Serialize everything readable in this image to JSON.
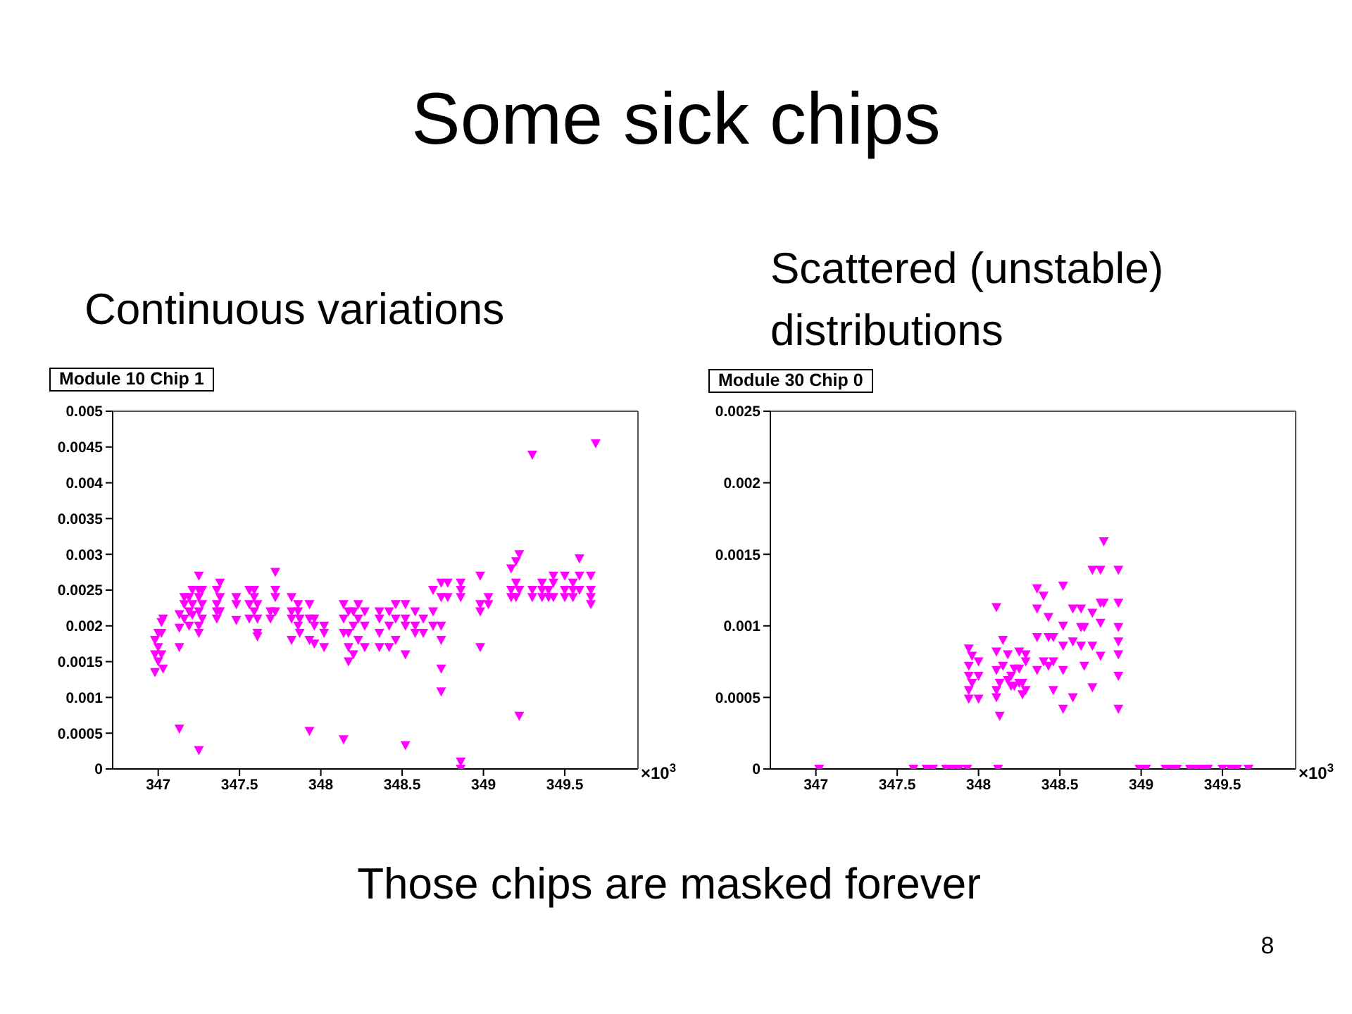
{
  "chart_data": [
    {
      "type": "other",
      "title": "Some sick chips",
      "annotations": [
        "Those chips are masked forever",
        "8"
      ]
    },
    {
      "type": "scatter",
      "title": "Module 10 Chip 1",
      "subtitle": "Continuous variations",
      "xlabel": "×10$^{3}$",
      "color": "#ff00ff",
      "marker": "triangle",
      "xlim": [
        346.72,
        349.95
      ],
      "xticks": [
        347,
        347.5,
        348,
        348.5,
        349,
        349.5
      ],
      "ylim": [
        0,
        0.005
      ],
      "yticks": [
        0,
        0.0005,
        0.001,
        0.0015,
        0.002,
        0.0025,
        0.003,
        0.0035,
        0.004,
        0.0045,
        0.005
      ],
      "x": [
        346.98,
        346.98,
        346.98,
        347,
        347,
        347,
        347.02,
        347.02,
        347.02,
        347.03,
        347.03,
        347.13,
        347.13,
        347.13,
        347.13,
        347.16,
        347.16,
        347.16,
        347.19,
        347.19,
        347.19,
        347.21,
        347.21,
        347.21,
        347.25,
        347.25,
        347.25,
        347.25,
        347.25,
        347.25,
        347.25,
        347.27,
        347.27,
        347.27,
        347.36,
        347.36,
        347.36,
        347.36,
        347.38,
        347.38,
        347.38,
        347.48,
        347.48,
        347.48,
        347.56,
        347.56,
        347.56,
        347.59,
        347.59,
        347.59,
        347.61,
        347.61,
        347.61,
        347.61,
        347.69,
        347.69,
        347.72,
        347.72,
        347.72,
        347.72,
        347.82,
        347.82,
        347.82,
        347.82,
        347.86,
        347.86,
        347.86,
        347.87,
        347.87,
        347.93,
        347.93,
        347.93,
        347.93,
        347.96,
        347.96,
        347.96,
        348.02,
        348.02,
        348.02,
        348.14,
        348.14,
        348.14,
        348.14,
        348.17,
        348.17,
        348.17,
        348.17,
        348.2,
        348.2,
        348.2,
        348.23,
        348.23,
        348.23,
        348.27,
        348.27,
        348.27,
        348.36,
        348.36,
        348.36,
        348.36,
        348.42,
        348.42,
        348.42,
        348.46,
        348.46,
        348.46,
        348.52,
        348.52,
        348.52,
        348.52,
        348.52,
        348.58,
        348.58,
        348.58,
        348.63,
        348.63,
        348.69,
        348.69,
        348.69,
        348.74,
        348.74,
        348.74,
        348.74,
        348.74,
        348.74,
        348.78,
        348.78,
        348.86,
        348.86,
        348.86,
        348.86,
        348.86,
        348.98,
        348.98,
        348.98,
        348.98,
        349.03,
        349.03,
        349.17,
        349.17,
        349.17,
        349.2,
        349.2,
        349.2,
        349.22,
        349.22,
        349.22,
        349.3,
        349.3,
        349.3,
        349.36,
        349.36,
        349.36,
        349.4,
        349.4,
        349.43,
        349.43,
        349.43,
        349.5,
        349.5,
        349.5,
        349.55,
        349.55,
        349.55,
        349.59,
        349.59,
        349.59,
        349.66,
        349.66,
        349.66,
        349.66,
        349.69
      ],
      "values": [
        0.00135,
        0.0016,
        0.0018,
        0.0015,
        0.0017,
        0.0019,
        0.0016,
        0.0019,
        0.00205,
        0.0021,
        0.0014,
        0.0017,
        0.00197,
        0.00216,
        0.00056,
        0.0021,
        0.0023,
        0.0024,
        0.002,
        0.0022,
        0.0024,
        0.00215,
        0.0023,
        0.0025,
        0.0019,
        0.002,
        0.0022,
        0.0024,
        0.0025,
        0.0027,
        0.00026,
        0.0021,
        0.0023,
        0.0025,
        0.0021,
        0.0022,
        0.0023,
        0.0025,
        0.0022,
        0.0024,
        0.0026,
        0.00208,
        0.0023,
        0.0024,
        0.0021,
        0.0023,
        0.0025,
        0.0022,
        0.0024,
        0.0025,
        0.00185,
        0.0019,
        0.0021,
        0.0023,
        0.0021,
        0.0022,
        0.0022,
        0.0024,
        0.0025,
        0.00275,
        0.0018,
        0.0021,
        0.0022,
        0.0024,
        0.002,
        0.0022,
        0.0023,
        0.0019,
        0.0021,
        0.0018,
        0.0021,
        0.0023,
        0.00053,
        0.00175,
        0.002,
        0.0021,
        0.0017,
        0.0019,
        0.002,
        0.0019,
        0.0021,
        0.0023,
        0.00041,
        0.0015,
        0.0017,
        0.0019,
        0.0022,
        0.0016,
        0.002,
        0.0022,
        0.0018,
        0.0021,
        0.0023,
        0.0017,
        0.002,
        0.0022,
        0.0017,
        0.0019,
        0.0021,
        0.0022,
        0.0017,
        0.002,
        0.0022,
        0.0018,
        0.0021,
        0.0023,
        0.0016,
        0.002,
        0.0021,
        0.0023,
        0.00033,
        0.0019,
        0.002,
        0.0022,
        0.0019,
        0.0021,
        0.002,
        0.0022,
        0.0025,
        0.0014,
        0.00108,
        0.0018,
        0.002,
        0.0024,
        0.0026,
        0.0024,
        0.0026,
        0.0024,
        0.0025,
        0.0026,
        0.0001,
        0,
        0.0022,
        0.0023,
        0.0027,
        0.0017,
        0.0023,
        0.0024,
        0.0024,
        0.0025,
        0.0028,
        0.0024,
        0.0026,
        0.0029,
        0.0025,
        0.003,
        0.00074,
        0.0024,
        0.0025,
        0.00439,
        0.0024,
        0.0025,
        0.0026,
        0.0024,
        0.0025,
        0.0024,
        0.0026,
        0.0027,
        0.0024,
        0.0025,
        0.0027,
        0.0024,
        0.0025,
        0.0026,
        0.0025,
        0.0027,
        0.00294,
        0.0023,
        0.0024,
        0.0025,
        0.0027,
        0.00455
      ]
    },
    {
      "type": "scatter",
      "title": "Module 30 Chip 0",
      "subtitle": "Scattered (unstable) distributions",
      "xlabel": "×10$^{3}$",
      "color": "#ff00ff",
      "marker": "triangle",
      "xlim": [
        346.72,
        349.95
      ],
      "xticks": [
        347,
        347.5,
        348,
        348.5,
        349,
        349.5
      ],
      "ylim": [
        0,
        0.0025
      ],
      "yticks": [
        0,
        0.0005,
        0.001,
        0.0015,
        0.002,
        0.0025
      ],
      "x": [
        347.02,
        347.6,
        347.68,
        347.72,
        347.8,
        347.84,
        347.88,
        347.93,
        347.94,
        347.94,
        347.94,
        347.94,
        347.94,
        347.96,
        347.96,
        348,
        348,
        348,
        348.11,
        348.11,
        348.11,
        348.11,
        348.11,
        348.12,
        348.13,
        348.13,
        348.15,
        348.15,
        348.18,
        348.18,
        348.2,
        348.2,
        348.22,
        348.22,
        348.25,
        348.25,
        348.25,
        348.27,
        348.27,
        348.29,
        348.29,
        348.29,
        348.36,
        348.36,
        348.36,
        348.36,
        348.4,
        348.4,
        348.43,
        348.43,
        348.43,
        348.46,
        348.46,
        348.46,
        348.52,
        348.52,
        348.52,
        348.52,
        348.52,
        348.58,
        348.58,
        348.58,
        348.63,
        348.63,
        348.63,
        348.65,
        348.65,
        348.7,
        348.7,
        348.7,
        348.7,
        348.75,
        348.75,
        348.75,
        348.75,
        348.77,
        348.77,
        348.86,
        348.86,
        348.86,
        348.86,
        348.86,
        348.86,
        348.86,
        348.99,
        349.03,
        349.15,
        349.19,
        349.22,
        349.3,
        349.34,
        349.38,
        349.41,
        349.5,
        349.55,
        349.59,
        349.66
      ],
      "values": [
        0,
        0,
        0,
        0,
        0,
        0,
        0,
        0,
        0.00084,
        0.00072,
        0.00065,
        0.00055,
        0.00049,
        0.00079,
        0.0006,
        0.00075,
        0.00065,
        0.00049,
        0.00113,
        0.00082,
        0.00069,
        0.00055,
        0.0005,
        0,
        0.00037,
        0.0006,
        0.0009,
        0.00072,
        0.0008,
        0.00062,
        0.00065,
        0.00058,
        0.00058,
        0.0007,
        0.0007,
        0.0006,
        0.00082,
        0.0006,
        0.00052,
        0.00075,
        0.00055,
        0.0008,
        0.00126,
        0.00112,
        0.00092,
        0.00069,
        0.00121,
        0.00075,
        0.00106,
        0.00092,
        0.00072,
        0.00092,
        0.00075,
        0.00055,
        0.00128,
        0.001,
        0.00086,
        0.00069,
        0.00042,
        0.00112,
        0.00089,
        0.0005,
        0.00112,
        0.00099,
        0.00086,
        0.00099,
        0.00072,
        0.00139,
        0.00109,
        0.00086,
        0.00057,
        0.00139,
        0.00116,
        0.00102,
        0.00079,
        0.00159,
        0.00116,
        0.00139,
        0.00116,
        0.00099,
        0.00089,
        0.0008,
        0.00065,
        0.00042,
        0,
        0,
        0,
        0,
        0,
        0,
        0,
        0,
        0,
        0,
        0,
        0,
        0
      ]
    }
  ]
}
